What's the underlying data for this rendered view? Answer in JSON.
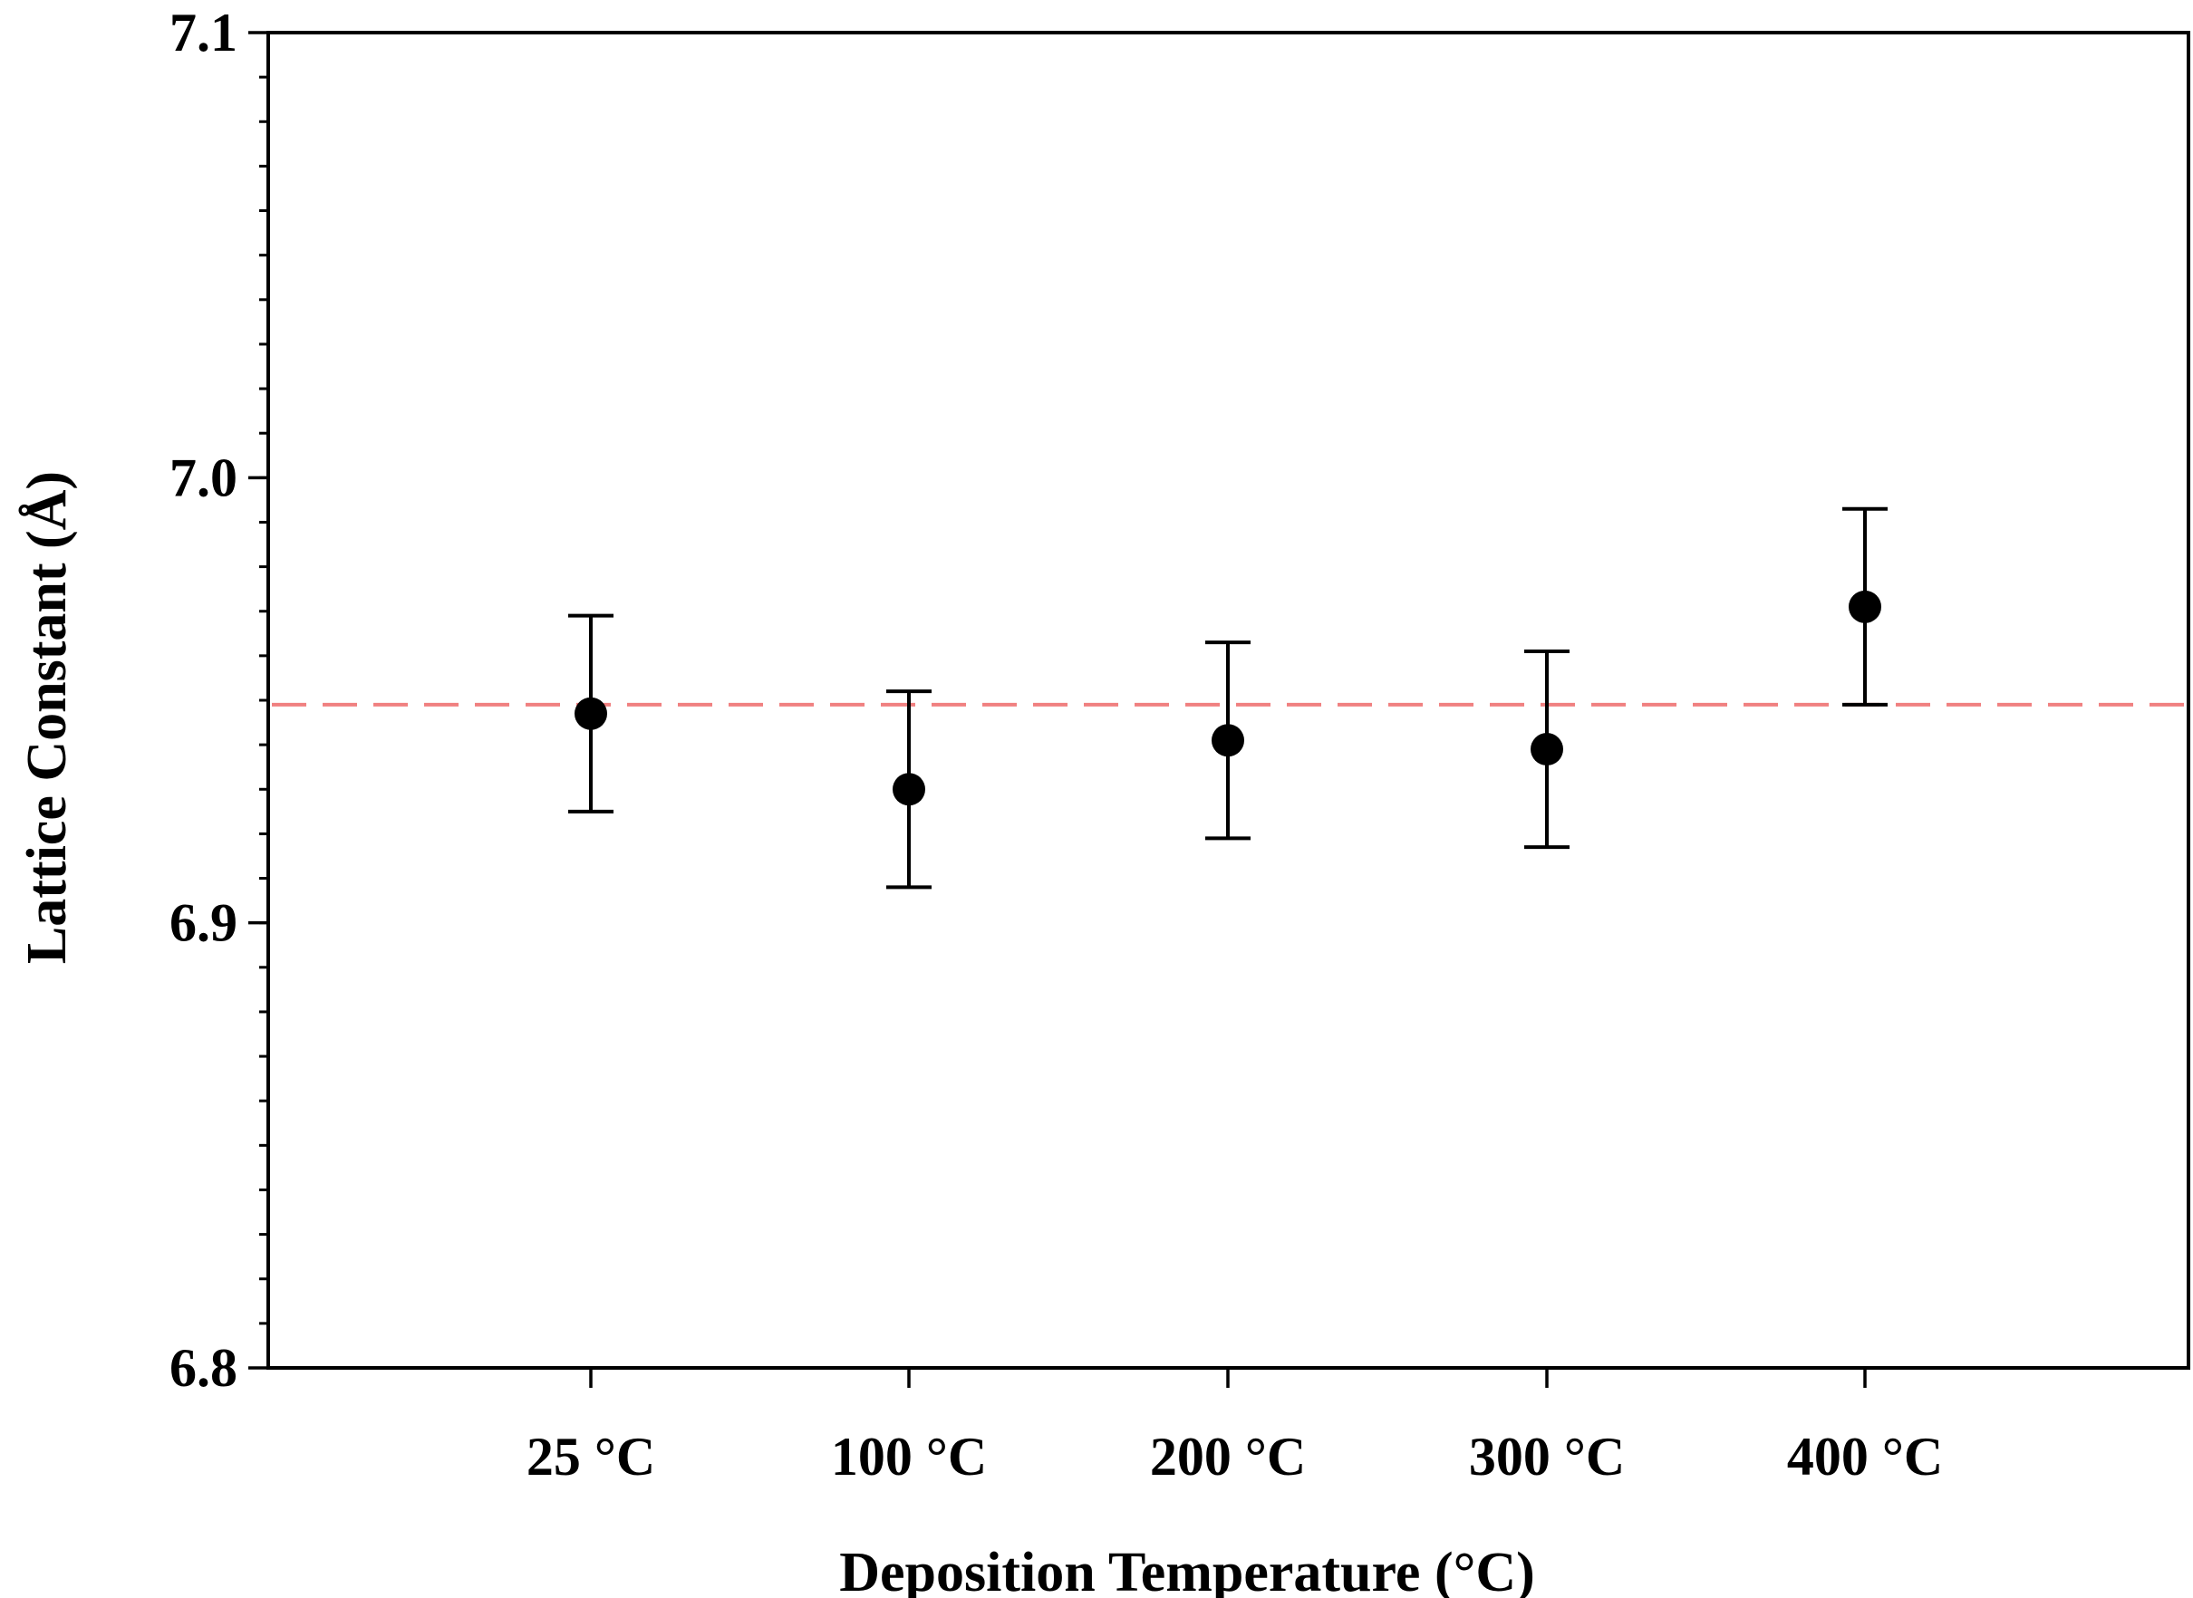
{
  "chart_data": {
    "type": "scatter",
    "title": "",
    "xlabel": "Deposition Temperature (°C)",
    "ylabel": "Lattice Constant (Å)",
    "ylim": [
      6.8,
      7.1
    ],
    "yticks": [
      6.8,
      6.9,
      7.0,
      7.1
    ],
    "ytick_labels": [
      "6.8",
      "6.9",
      "7.0",
      "7.1"
    ],
    "y_minor_step": 0.01,
    "categories": [
      "25 °C",
      "100 °C",
      "200 °C",
      "300 °C",
      "400 °C"
    ],
    "series": [
      {
        "name": "Lattice Constant",
        "values": [
          6.947,
          6.93,
          6.941,
          6.939,
          6.971
        ],
        "errors": [
          0.022,
          0.022,
          0.022,
          0.022,
          0.022
        ]
      }
    ],
    "reference_line": {
      "value": 6.949,
      "color": "#f08080",
      "style": "dashed"
    },
    "grid": false,
    "marker_color": "#000000"
  }
}
